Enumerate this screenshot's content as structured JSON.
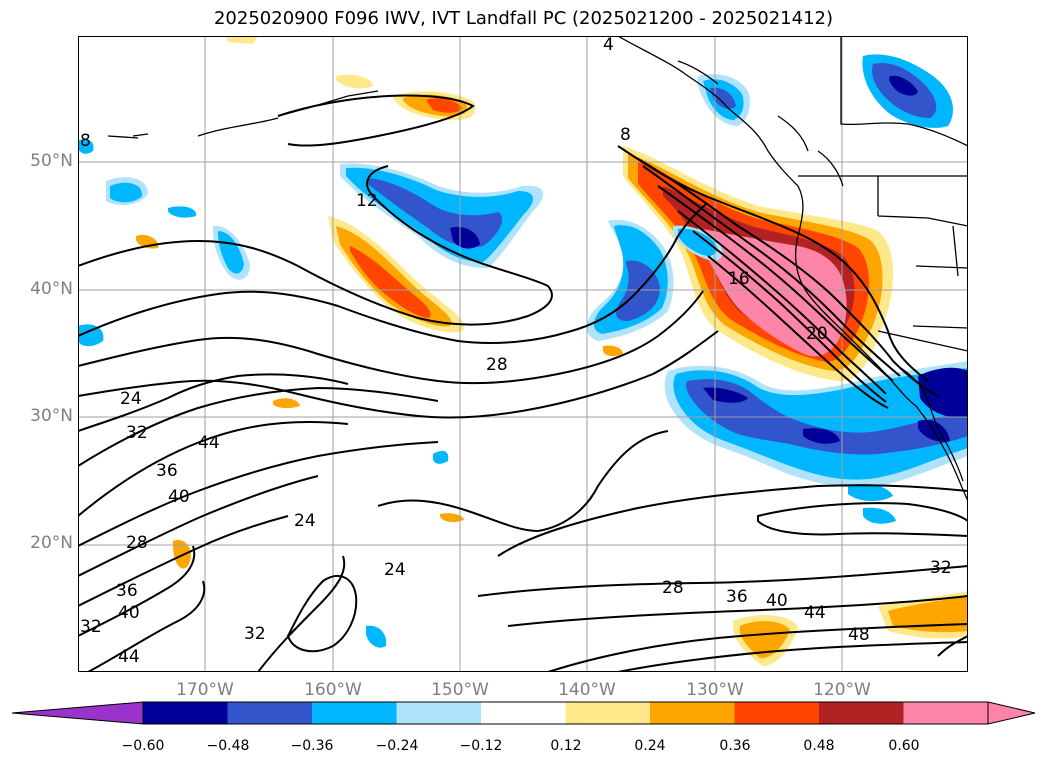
{
  "title": "2025020900 F096 IWV, IVT Landfall PC (2025021200 - 2025021412)",
  "lat_labels": [
    "50°N",
    "40°N",
    "30°N",
    "20°N"
  ],
  "lon_labels": [
    "170°W",
    "160°W",
    "150°W",
    "140°W",
    "130°W",
    "120°W"
  ],
  "colorbar": {
    "ticks": [
      "−0.60",
      "−0.48",
      "−0.36",
      "−0.24",
      "−0.12",
      "0.12",
      "0.24",
      "0.36",
      "0.48",
      "0.60"
    ],
    "colors": [
      "#9933cc",
      "#000099",
      "#3355cc",
      "#00b7ff",
      "#aee3fb",
      "#ffffff",
      "#ffe88a",
      "#ffa500",
      "#ff4500",
      "#b22222",
      "#ff85a8",
      "#ff85a8"
    ]
  },
  "contour_labels": [
    "4",
    "8",
    "8",
    "12",
    "16",
    "20",
    "28",
    "24",
    "32",
    "36",
    "44",
    "40",
    "28",
    "24",
    "24",
    "32",
    "28",
    "36",
    "40",
    "44",
    "48",
    "32",
    "36",
    "40",
    "32",
    "44"
  ]
}
